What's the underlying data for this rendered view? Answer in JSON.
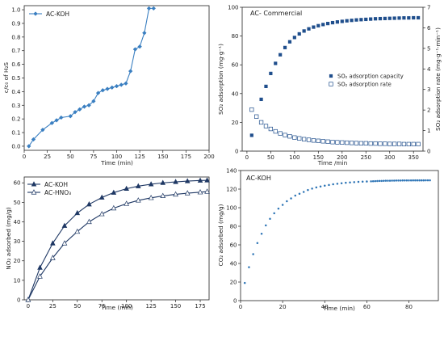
{
  "chart_data": [
    {
      "id": "p1",
      "type": "line",
      "title": "",
      "xlabel": "Time (min)",
      "ylabel": "c/c₀ of H₂S",
      "xlim": [
        0,
        200
      ],
      "ylim": [
        -0.03,
        1.03
      ],
      "xticks": [
        0,
        25,
        50,
        75,
        100,
        125,
        150,
        175,
        200
      ],
      "yticks": [
        0.0,
        0.1,
        0.2,
        0.3,
        0.4,
        0.5,
        0.6,
        0.7,
        0.8,
        0.9,
        1.0
      ],
      "ytick_labels": [
        "0.0",
        "0.1",
        "0.2",
        "0.3",
        "0.4",
        "0.5",
        "0.6",
        "0.7",
        "0.8",
        "0.9",
        "1.0"
      ],
      "legend": "top-left",
      "series": [
        {
          "name": "AC-KOH",
          "color": "#3a7fc1",
          "marker": "diamond",
          "x": [
            5,
            10,
            20,
            30,
            35,
            40,
            50,
            55,
            60,
            65,
            70,
            75,
            80,
            85,
            90,
            95,
            100,
            105,
            110,
            115,
            120,
            125,
            130,
            135,
            140
          ],
          "y": [
            0.0,
            0.05,
            0.12,
            0.17,
            0.19,
            0.21,
            0.22,
            0.25,
            0.27,
            0.29,
            0.3,
            0.33,
            0.39,
            0.41,
            0.42,
            0.43,
            0.44,
            0.45,
            0.46,
            0.55,
            0.71,
            0.73,
            0.83,
            1.01,
            1.01
          ]
        }
      ]
    },
    {
      "id": "p2",
      "type": "scatter",
      "title": "AC- Commercial",
      "xlabel": "Time /min",
      "ylabel": "SO₂ adsorption (mg·g⁻¹)",
      "ylabel_right": "SO₂ adsorption rate (mg·g⁻¹·min⁻¹)",
      "xlim": [
        -10,
        370
      ],
      "ylim": [
        0,
        100
      ],
      "ylim_right": [
        0,
        7
      ],
      "xticks": [
        0,
        50,
        100,
        150,
        200,
        250,
        300,
        350
      ],
      "yticks": [
        0,
        20,
        40,
        60,
        80,
        100
      ],
      "yticks_right": [
        0,
        1,
        2,
        3,
        4,
        5,
        6,
        7
      ],
      "legend": "center-right",
      "series": [
        {
          "name": "SO₂ adsorption capacity",
          "color": "#1f4e8c",
          "marker": "filled-square",
          "axis": "left",
          "x": [
            10,
            20,
            30,
            40,
            50,
            60,
            70,
            80,
            90,
            100,
            110,
            120,
            130,
            140,
            150,
            160,
            170,
            180,
            190,
            200,
            210,
            220,
            230,
            240,
            250,
            260,
            270,
            280,
            290,
            300,
            310,
            320,
            330,
            340,
            350,
            360
          ],
          "y": [
            11,
            24,
            36,
            45,
            54,
            61,
            67,
            72,
            76,
            79,
            81.5,
            83.5,
            85,
            86.2,
            87.2,
            88,
            88.7,
            89.3,
            89.8,
            90.2,
            90.6,
            90.9,
            91.2,
            91.4,
            91.6,
            91.8,
            92,
            92.1,
            92.2,
            92.3,
            92.4,
            92.5,
            92.6,
            92.6,
            92.7,
            92.7
          ]
        },
        {
          "name": "SO₂ adsorption rate",
          "color": "#1f4e8c",
          "marker": "open-square",
          "axis": "right",
          "x": [
            10,
            20,
            30,
            40,
            50,
            60,
            70,
            80,
            90,
            100,
            110,
            120,
            130,
            140,
            150,
            160,
            170,
            180,
            190,
            200,
            210,
            220,
            230,
            240,
            250,
            260,
            270,
            280,
            290,
            300,
            310,
            320,
            330,
            340,
            350,
            360
          ],
          "y": [
            2.02,
            1.68,
            1.4,
            1.22,
            1.08,
            0.96,
            0.86,
            0.78,
            0.72,
            0.66,
            0.62,
            0.58,
            0.55,
            0.52,
            0.5,
            0.48,
            0.46,
            0.44,
            0.43,
            0.42,
            0.41,
            0.4,
            0.39,
            0.38,
            0.38,
            0.37,
            0.37,
            0.36,
            0.36,
            0.35,
            0.35,
            0.35,
            0.34,
            0.34,
            0.34,
            0.34
          ]
        }
      ]
    },
    {
      "id": "p3",
      "type": "line",
      "title": "",
      "xlabel": "Time (min)",
      "ylabel": "NO₂ adsorbed (mg/g)",
      "xlim": [
        -4,
        184
      ],
      "ylim": [
        0,
        63
      ],
      "xticks": [
        0,
        25,
        50,
        75,
        100,
        125,
        150,
        175
      ],
      "yticks": [
        0,
        10,
        20,
        30,
        40,
        50,
        60
      ],
      "legend": "top-left",
      "series": [
        {
          "name": "AC-KOH",
          "color": "#1f3864",
          "marker": "filled-triangle",
          "x": [
            0,
            12,
            25,
            37,
            50,
            62,
            75,
            87,
            100,
            112,
            125,
            137,
            150,
            162,
            175,
            182
          ],
          "y": [
            0,
            16.5,
            29,
            38,
            44.5,
            49,
            52.5,
            55,
            57,
            58.3,
            59.3,
            60,
            60.5,
            60.9,
            61.2,
            61.3
          ]
        },
        {
          "name": "AC-HNO₃",
          "color": "#1f3864",
          "marker": "open-triangle",
          "x": [
            0,
            12,
            25,
            37,
            50,
            62,
            75,
            87,
            100,
            112,
            125,
            137,
            150,
            162,
            175,
            182
          ],
          "y": [
            0,
            12,
            21.5,
            29,
            35,
            40,
            44,
            47,
            49.3,
            51,
            52.3,
            53.3,
            54.1,
            54.7,
            55.2,
            55.5
          ]
        }
      ]
    },
    {
      "id": "p4",
      "type": "scatter",
      "title": "AC-KOH",
      "xlabel": "Time (min)",
      "ylabel": "CO₂ adsorbed (mg/g)",
      "xlim": [
        0,
        94
      ],
      "ylim": [
        0,
        140
      ],
      "xticks": [
        0,
        20,
        40,
        60,
        80
      ],
      "yticks": [
        0,
        20,
        40,
        60,
        80,
        100,
        120,
        140
      ],
      "legend": "none",
      "series": [
        {
          "name": "",
          "color": "#2e75b6",
          "marker": "dot",
          "x": [
            2,
            4,
            6,
            8,
            10,
            12,
            14,
            16,
            18,
            20,
            22,
            24,
            26,
            28,
            30,
            32,
            34,
            36,
            38,
            40,
            42,
            44,
            46,
            48,
            50,
            52,
            54,
            56,
            58,
            60,
            62,
            63,
            64,
            65,
            66,
            67,
            68,
            69,
            70,
            71,
            72,
            73,
            74,
            75,
            76,
            77,
            78,
            79,
            80,
            81,
            82,
            83,
            84,
            85,
            86,
            87,
            88,
            89,
            90
          ],
          "y": [
            19,
            36,
            50,
            62,
            72,
            81,
            88,
            94,
            99,
            103,
            107,
            110,
            113,
            115,
            117,
            119,
            120.5,
            121.8,
            122.8,
            123.7,
            124.5,
            125.2,
            125.8,
            126.3,
            126.8,
            127.2,
            127.5,
            127.8,
            128,
            128.2,
            128.4,
            128.5,
            128.6,
            128.7,
            128.8,
            128.8,
            128.9,
            129,
            129,
            129,
            129.1,
            129.1,
            129.2,
            129.2,
            129.2,
            129.3,
            129.3,
            129.3,
            129.3,
            129.3,
            129.4,
            129.4,
            129.4,
            129.4,
            129.4,
            129.4,
            129.5,
            129.5,
            129.5
          ]
        }
      ]
    }
  ]
}
